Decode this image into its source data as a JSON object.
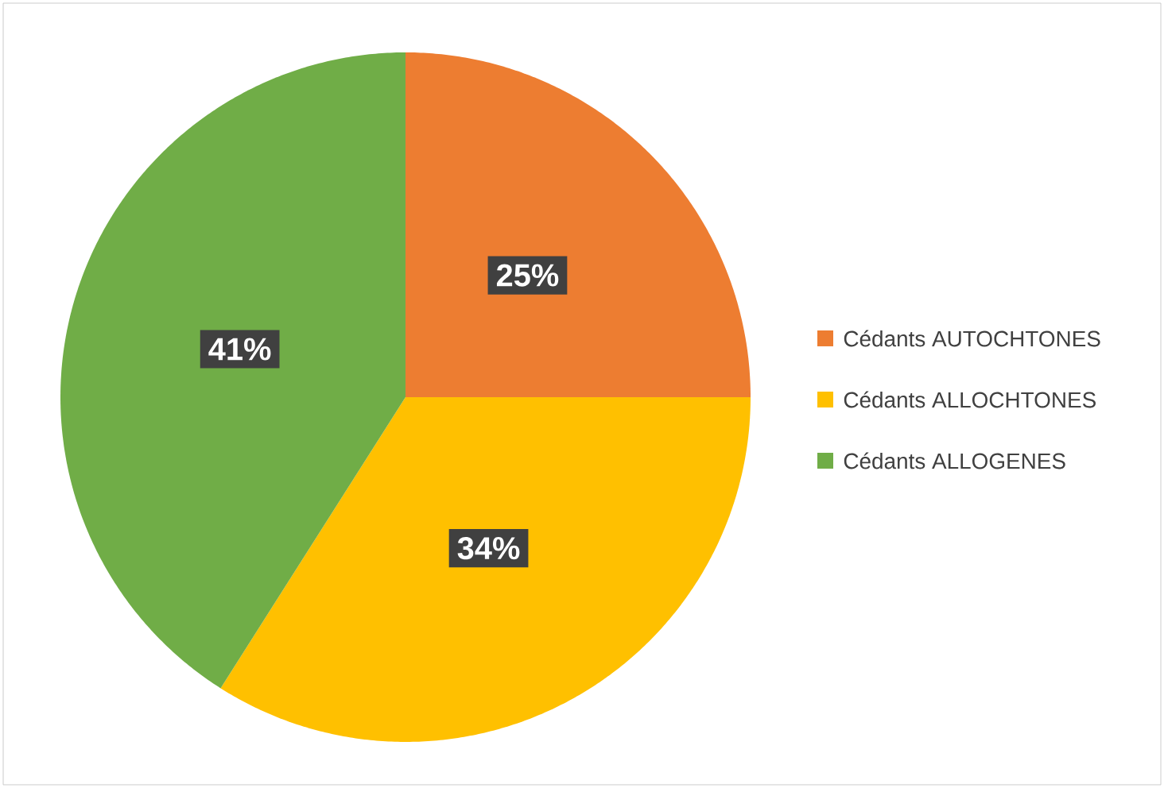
{
  "chart_data": {
    "type": "pie",
    "categories": [
      "Cédants AUTOCHTONES",
      "Cédants ALLOCHTONES",
      "Cédants ALLOGENES"
    ],
    "values": [
      25,
      34,
      41
    ],
    "colors": [
      "#ed7d31",
      "#ffc000",
      "#70ad47"
    ],
    "value_labels": [
      "25%",
      "34%",
      "41%"
    ],
    "legend": "right"
  }
}
